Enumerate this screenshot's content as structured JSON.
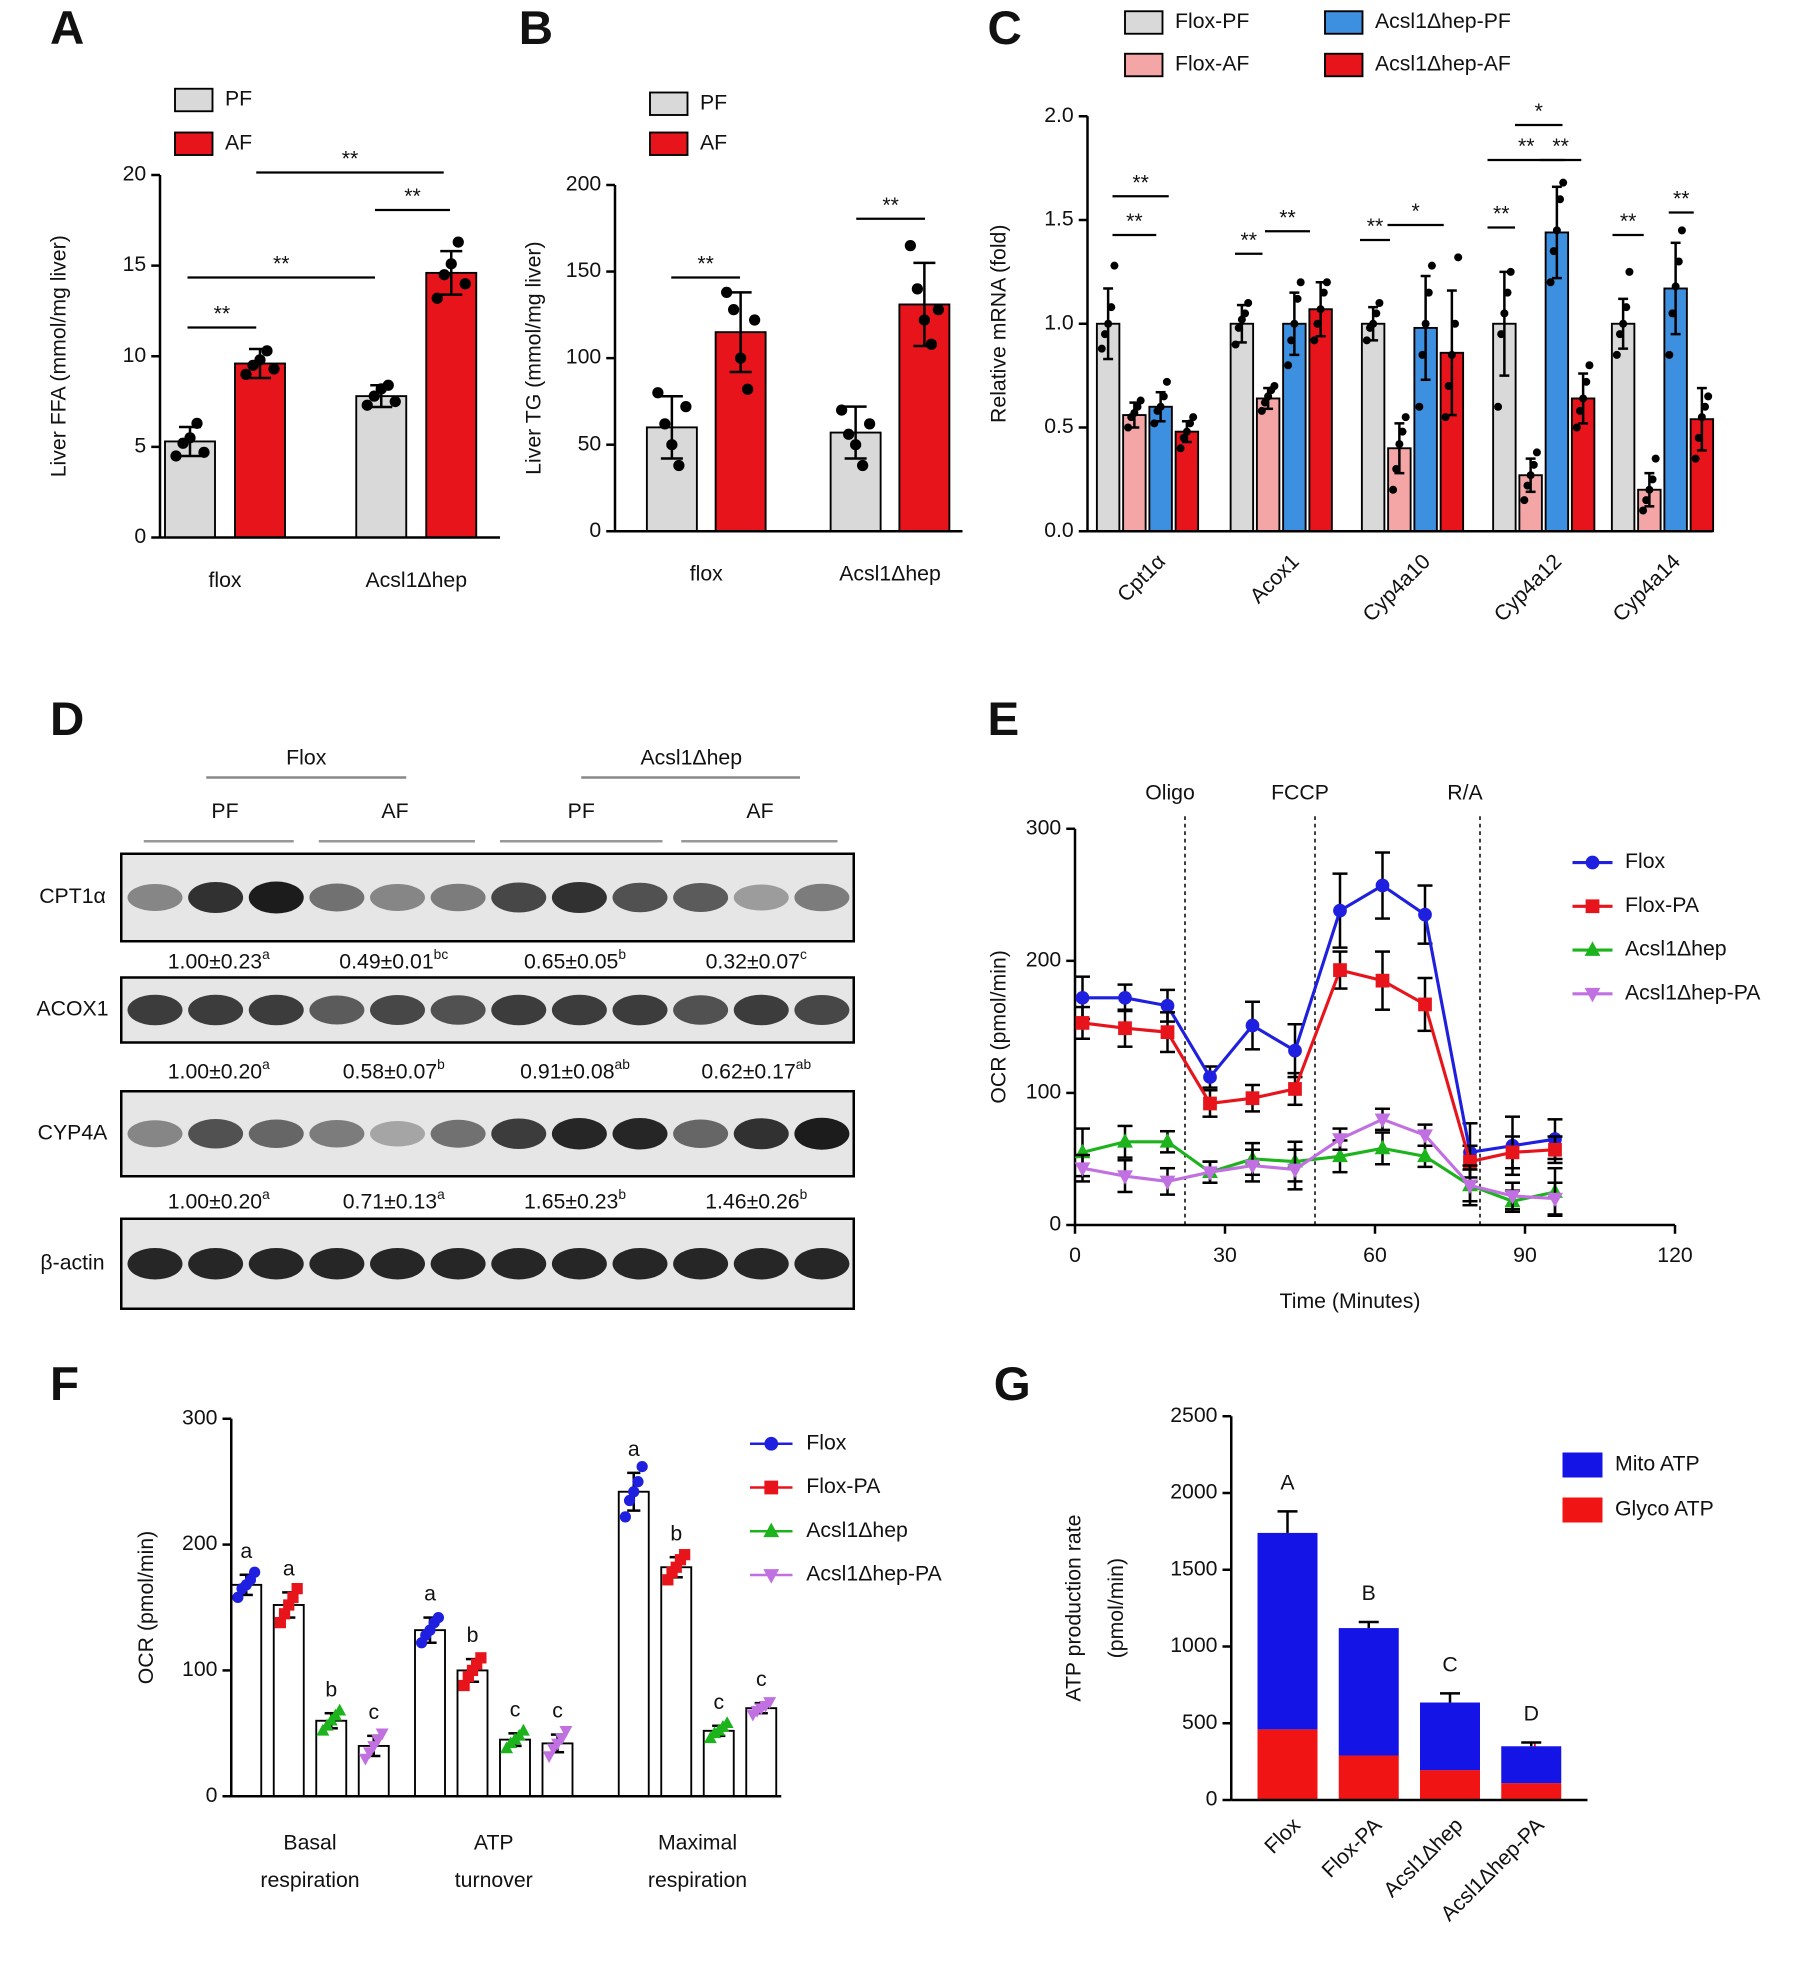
{
  "chart_data": [
    {
      "panel": "A",
      "type": "bar",
      "ylabel": "Liver FFA (mmol/mg liver)",
      "categories": [
        "flox",
        "Acsl1Δhep"
      ],
      "ylim": [
        0,
        20
      ],
      "yticks": [
        0,
        5,
        10,
        15,
        20
      ],
      "point_color": "#000000",
      "series": [
        {
          "name": "PF",
          "color": "#d9d9d9",
          "values": [
            5.3,
            7.8
          ],
          "errors": [
            0.8,
            0.6
          ],
          "points": [
            [
              4.5,
              5.2,
              5.5,
              6.3,
              4.7
            ],
            [
              7.3,
              7.8,
              8.2,
              8.4,
              7.5
            ]
          ]
        },
        {
          "name": "AF",
          "color": "#e8141b",
          "values": [
            9.6,
            14.6
          ],
          "errors": [
            0.8,
            1.2
          ],
          "points": [
            [
              9.0,
              9.5,
              9.8,
              10.3,
              9.3
            ],
            [
              13.2,
              14.5,
              15.1,
              16.3,
              14.0
            ]
          ]
        }
      ],
      "significance": [
        "**",
        "**",
        "**",
        "**"
      ]
    },
    {
      "panel": "B",
      "type": "bar",
      "ylabel": "Liver TG (mmol/mg liver)",
      "categories": [
        "flox",
        "Acsl1Δhep"
      ],
      "ylim": [
        0,
        200
      ],
      "yticks": [
        0,
        50,
        100,
        150,
        200
      ],
      "point_color": "#000000",
      "series": [
        {
          "name": "PF",
          "color": "#d9d9d9",
          "values": [
            60,
            57
          ],
          "errors": [
            18,
            15
          ],
          "points": [
            [
              80,
              62,
              50,
              38,
              72
            ],
            [
              70,
              56,
              50,
              38,
              62
            ]
          ]
        },
        {
          "name": "AF",
          "color": "#e8141b",
          "values": [
            115,
            131
          ],
          "errors": [
            23,
            24
          ],
          "points": [
            [
              138,
              128,
              100,
              82,
              122
            ],
            [
              165,
              140,
              122,
              108,
              128
            ]
          ]
        }
      ],
      "significance": [
        "**",
        "**"
      ]
    },
    {
      "panel": "C",
      "type": "bar",
      "ylabel": "Relative mRNA (fold)",
      "categories": [
        "Cpt1α",
        "Acox1",
        "Cyp4a10",
        "Cyp4a12",
        "Cyp4a14"
      ],
      "ylim": [
        0,
        2
      ],
      "yticks": [
        {
          "value": 0,
          "label": "0.0"
        },
        0.5,
        {
          "value": 1,
          "label": "1.0"
        },
        1.5,
        {
          "value": 2,
          "label": "2.0"
        }
      ],
      "point_color": "#000000",
      "series": [
        {
          "name": "Flox-PF",
          "color": "#d9d9d9",
          "values": [
            1.0,
            1.0,
            1.0,
            1.0,
            1.0
          ],
          "errors": [
            0.17,
            0.09,
            0.08,
            0.25,
            0.12
          ],
          "points": [
            [
              0.88,
              0.95,
              1.0,
              1.08,
              1.28
            ],
            [
              0.9,
              0.98,
              1.02,
              1.05,
              1.1
            ],
            [
              0.92,
              0.98,
              1.0,
              1.05,
              1.1
            ],
            [
              0.6,
              0.95,
              1.05,
              1.15,
              1.25
            ],
            [
              0.85,
              0.95,
              1.0,
              1.08,
              1.25
            ]
          ]
        },
        {
          "name": "Flox-AF",
          "color": "#f4a6a6",
          "values": [
            0.56,
            0.64,
            0.4,
            0.27,
            0.2
          ],
          "errors": [
            0.06,
            0.05,
            0.12,
            0.08,
            0.08
          ],
          "points": [
            [
              0.5,
              0.55,
              0.57,
              0.6,
              0.63
            ],
            [
              0.58,
              0.62,
              0.65,
              0.68,
              0.7
            ],
            [
              0.2,
              0.3,
              0.42,
              0.48,
              0.55
            ],
            [
              0.15,
              0.22,
              0.27,
              0.32,
              0.38
            ],
            [
              0.1,
              0.15,
              0.2,
              0.25,
              0.35
            ]
          ]
        },
        {
          "name": "Acsl1Δhep-PF",
          "color": "#3d8fe0",
          "values": [
            0.6,
            1.0,
            0.98,
            1.44,
            1.17
          ],
          "errors": [
            0.07,
            0.15,
            0.25,
            0.22,
            0.22
          ],
          "points": [
            [
              0.52,
              0.58,
              0.6,
              0.65,
              0.72
            ],
            [
              0.8,
              0.92,
              1.0,
              1.12,
              1.2
            ],
            [
              0.6,
              0.85,
              1.0,
              1.15,
              1.28
            ],
            [
              1.2,
              1.35,
              1.45,
              1.6,
              1.68
            ],
            [
              0.85,
              1.05,
              1.18,
              1.3,
              1.45
            ]
          ]
        },
        {
          "name": "Acsl1Δhep-AF",
          "color": "#e8141b",
          "values": [
            0.48,
            1.07,
            0.86,
            0.64,
            0.54
          ],
          "errors": [
            0.05,
            0.13,
            0.3,
            0.12,
            0.15
          ],
          "points": [
            [
              0.4,
              0.45,
              0.48,
              0.52,
              0.55
            ],
            [
              0.92,
              1.0,
              1.07,
              1.15,
              1.2
            ],
            [
              0.55,
              0.7,
              0.85,
              1.0,
              1.32
            ],
            [
              0.5,
              0.58,
              0.64,
              0.72,
              0.8
            ],
            [
              0.35,
              0.45,
              0.55,
              0.6,
              0.65
            ]
          ]
        }
      ],
      "significance": [
        "**",
        "**",
        "**",
        "**",
        "**",
        "*",
        "**",
        "**",
        "*",
        "**",
        "**",
        "**"
      ]
    },
    {
      "panel": "E",
      "type": "line",
      "xlabel": "Time (Minutes)",
      "ylabel": "OCR (pmol/min)",
      "x": [
        1.5,
        10,
        18.5,
        27,
        35.5,
        44,
        53,
        61.5,
        70,
        79,
        87.5,
        96
      ],
      "xlim": [
        0,
        120
      ],
      "xticks": [
        0,
        30,
        60,
        90,
        120
      ],
      "ylim": [
        0,
        300
      ],
      "yticks": [
        0,
        100,
        200,
        300
      ],
      "injections": [
        {
          "label": "Oligo",
          "x": 22
        },
        {
          "label": "FCCP",
          "x": 48
        },
        {
          "label": "R/A",
          "x": 81
        }
      ],
      "series": [
        {
          "name": "Flox",
          "color": "#1f1fe0",
          "marker": "circle",
          "values": [
            172,
            172,
            166,
            112,
            151,
            132,
            238,
            257,
            235,
            55,
            60,
            65
          ],
          "errors": [
            16,
            10,
            12,
            8,
            18,
            20,
            28,
            25,
            22,
            22,
            22,
            15
          ]
        },
        {
          "name": "Flox-PA",
          "color": "#e8141b",
          "marker": "square",
          "values": [
            153,
            149,
            146,
            92,
            96,
            103,
            193,
            185,
            167,
            48,
            55,
            57
          ],
          "errors": [
            12,
            14,
            15,
            10,
            10,
            12,
            14,
            22,
            20,
            12,
            12,
            10
          ]
        },
        {
          "name": "Acsl1Δhep",
          "color": "#1db31d",
          "marker": "triangle",
          "values": [
            55,
            63,
            63,
            40,
            50,
            48,
            52,
            58,
            52,
            30,
            18,
            25
          ],
          "errors": [
            18,
            12,
            8,
            8,
            12,
            15,
            12,
            12,
            8,
            15,
            8,
            18
          ]
        },
        {
          "name": "Acsl1Δhep-PA",
          "color": "#c070e0",
          "marker": "triangle-down",
          "values": [
            43,
            37,
            33,
            40,
            45,
            42,
            65,
            80,
            68,
            30,
            22,
            20
          ],
          "errors": [
            10,
            12,
            10,
            8,
            12,
            15,
            8,
            8,
            8,
            12,
            10,
            12
          ]
        }
      ]
    },
    {
      "panel": "F",
      "type": "bar",
      "ylabel": "OCR (pmol/min)",
      "categories": [
        [
          "Basal",
          "respiration"
        ],
        [
          "ATP",
          "turnover"
        ],
        [
          "Maximal",
          "respiration"
        ]
      ],
      "ylim": [
        0,
        300
      ],
      "yticks": [
        0,
        100,
        200,
        300
      ],
      "bar_fill": "#ffffff",
      "series": [
        {
          "name": "Flox",
          "color": "#1f1fe0",
          "marker": "circle",
          "values": [
            168,
            132,
            242
          ],
          "errors": [
            8,
            10,
            15
          ],
          "letters": [
            "a",
            "a",
            "a"
          ],
          "points": [
            [
              158,
              165,
              168,
              172,
              178
            ],
            [
              122,
              128,
              132,
              138,
              142
            ],
            [
              222,
              235,
              242,
              250,
              262
            ]
          ]
        },
        {
          "name": "Flox-PA",
          "color": "#e8141b",
          "marker": "square",
          "values": [
            152,
            100,
            182
          ],
          "errors": [
            10,
            9,
            8
          ],
          "letters": [
            "a",
            "b",
            "b"
          ],
          "points": [
            [
              138,
              145,
              152,
              158,
              165
            ],
            [
              88,
              95,
              100,
              105,
              110
            ],
            [
              172,
              178,
              182,
              188,
              192
            ]
          ]
        },
        {
          "name": "Acsl1Δhep",
          "color": "#1db31d",
          "marker": "triangle",
          "values": [
            60,
            45,
            52
          ],
          "errors": [
            6,
            5,
            4
          ],
          "letters": [
            "b",
            "c",
            "c"
          ],
          "points": [
            [
              52,
              56,
              60,
              64,
              68
            ],
            [
              38,
              42,
              45,
              48,
              52
            ],
            [
              46,
              50,
              52,
              55,
              58
            ]
          ]
        },
        {
          "name": "Acsl1Δhep-PA",
          "color": "#c070e0",
          "marker": "triangle-down",
          "values": [
            40,
            42,
            70
          ],
          "errors": [
            8,
            7,
            4
          ],
          "letters": [
            "c",
            "c",
            "c"
          ],
          "points": [
            [
              30,
              35,
              40,
              45,
              50
            ],
            [
              32,
              38,
              42,
              46,
              52
            ],
            [
              65,
              68,
              70,
              72,
              75
            ]
          ]
        }
      ]
    },
    {
      "panel": "G",
      "type": "stacked_bar",
      "ylabel": [
        "ATP production rate",
        "(pmol/min)"
      ],
      "categories": [
        "Flox",
        "Flox-PA",
        "Acsl1Δhep",
        "Acsl1Δhep-PA"
      ],
      "ylim": [
        0,
        2500
      ],
      "yticks": [
        0,
        500,
        1000,
        1500,
        2000,
        2500
      ],
      "series": [
        {
          "name": "Glyco ATP",
          "color": "#f01414",
          "values": [
            460,
            290,
            195,
            110
          ],
          "letters": [
            "a",
            "b",
            "c",
            "d"
          ]
        },
        {
          "name": "Mito ATP",
          "color": "#1414e6",
          "values": [
            1280,
            830,
            440,
            240
          ]
        }
      ],
      "errors": [
        140,
        40,
        60,
        25
      ],
      "letters": [
        "A",
        "B",
        "C",
        "D"
      ]
    }
  ],
  "blot": {
    "panel": "D",
    "groups": [
      {
        "label": "Flox",
        "subgroups": [
          "PF",
          "AF"
        ]
      },
      {
        "label": "Acsl1Δhep",
        "subgroups": [
          "PF",
          "AF"
        ]
      }
    ],
    "rows": [
      {
        "label": "CPT1α",
        "quant": [
          {
            "text": "1.00±0.23",
            "sup": "a"
          },
          {
            "text": "0.49±0.01",
            "sup": "bc"
          },
          {
            "text": "0.65±0.05",
            "sup": "b"
          },
          {
            "text": "0.32±0.07",
            "sup": "c"
          }
        ]
      },
      {
        "label": "ACOX1",
        "quant": [
          {
            "text": "1.00±0.20",
            "sup": "a"
          },
          {
            "text": "0.58±0.07",
            "sup": "b"
          },
          {
            "text": "0.91±0.08",
            "sup": "ab"
          },
          {
            "text": "0.62±0.17",
            "sup": "ab"
          }
        ]
      },
      {
        "label": "CYP4A",
        "quant": [
          {
            "text": "1.00±0.20",
            "sup": "a"
          },
          {
            "text": "0.71±0.13",
            "sup": "a"
          },
          {
            "text": "1.65±0.23",
            "sup": "b"
          },
          {
            "text": "1.46±0.26",
            "sup": "b"
          }
        ]
      },
      {
        "label": "β-actin"
      }
    ]
  }
}
